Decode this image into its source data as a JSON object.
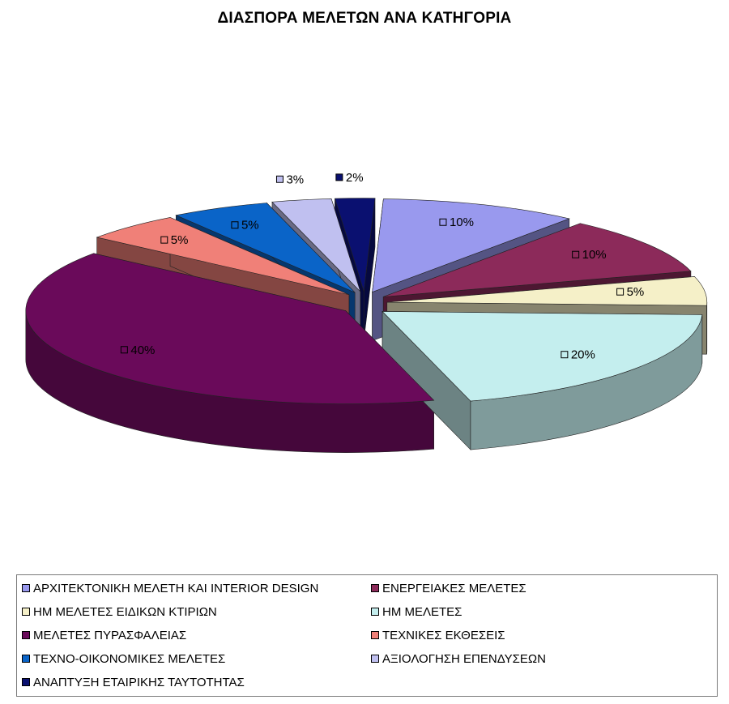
{
  "chart_data": {
    "type": "pie",
    "title": "ΔΙΑΣΠΟΡΑ ΜΕΛΕΤΩΝ ΑΝΑ ΚΑΤΗΓΟΡΙΑ",
    "three_d": true,
    "exploded": true,
    "legend_position": "bottom",
    "slices": [
      {
        "label": "ΑΡΧΙΤΕΚΤΟΝΙΚΗ ΜΕΛΕΤΗ ΚΑΙ INTERIOR DESIGN",
        "value": 10,
        "value_label": "10%",
        "color": "#9999ee"
      },
      {
        "label": "ΕΝΕΡΓΕΙΑΚΕΣ ΜΕΛΕΤΕΣ",
        "value": 10,
        "value_label": "10%",
        "color": "#8c2a5a"
      },
      {
        "label": "ΗΜ ΜΕΛΕΤΕΣ ΕΙΔΙΚΩΝ ΚΤΙΡΙΩΝ",
        "value": 5,
        "value_label": "5%",
        "color": "#f5f0c8"
      },
      {
        "label": "ΗΜ ΜΕΛΕΤΕΣ",
        "value": 20,
        "value_label": "20%",
        "color": "#c4eeee"
      },
      {
        "label": "ΜΕΛΕΤΕΣ ΠΥΡΑΣΦΑΛΕΙΑΣ",
        "value": 40,
        "value_label": "40%",
        "color": "#6a0a5a"
      },
      {
        "label": "ΤΕΧΝΙΚΕΣ ΕΚΘΕΣΕΙΣ",
        "value": 5,
        "value_label": "5%",
        "color": "#f08078"
      },
      {
        "label": "ΤΕΧΝΟ-ΟΙΚΟΝΟΜΙΚΕΣ ΜΕΛΕΤΕΣ",
        "value": 5,
        "value_label": "5%",
        "color": "#0a64c8"
      },
      {
        "label": "ΑΞΙΟΛΟΓΗΣΗ ΕΠΕΝΔΥΣΕΩΝ",
        "value": 3,
        "value_label": "3%",
        "color": "#c0c0f0"
      },
      {
        "label": "ΑΝΑΠΤΥΞΗ ΕΤΑΙΡΙΚΗΣ ΤΑΥΤΟΤΗΤΑΣ",
        "value": 2,
        "value_label": "2%",
        "color": "#0a1070"
      }
    ]
  }
}
